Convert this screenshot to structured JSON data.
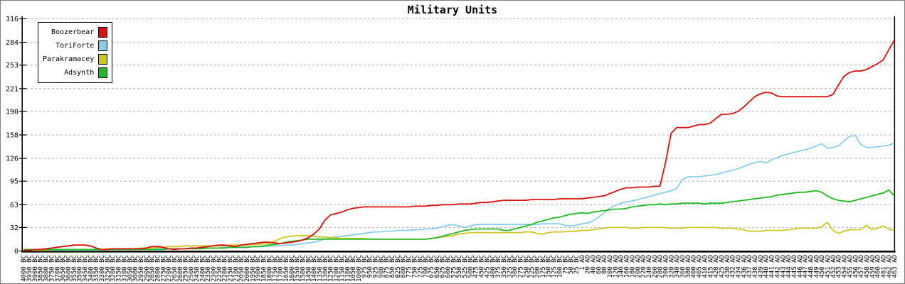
{
  "title": "Military Units",
  "chart_data": {
    "type": "line",
    "title": "Military Units",
    "grid": "horizontal-dashed",
    "background": "#ffffff",
    "grid_color": "#b3b3b3",
    "axis_color": "#000000",
    "legend_position": "top-left",
    "y_axis": {
      "min": 0,
      "max": 316,
      "ticks": [
        0,
        32,
        63,
        95,
        126,
        158,
        190,
        221,
        253,
        284,
        316
      ]
    },
    "x_axis": {
      "labels": [
        "4000 BC",
        "3950 BC",
        "3900 BC",
        "3850 BC",
        "3800 BC",
        "3750 BC",
        "3700 BC",
        "3650 BC",
        "3600 BC",
        "3550 BC",
        "3500 BC",
        "3450 BC",
        "3400 BC",
        "3350 BC",
        "3300 BC",
        "3250 BC",
        "3200 BC",
        "3150 BC",
        "3100 BC",
        "3050 BC",
        "3000 BC",
        "2950 BC",
        "2900 BC",
        "2850 BC",
        "2800 BC",
        "2750 BC",
        "2700 BC",
        "2650 BC",
        "2600 BC",
        "2550 BC",
        "2500 BC",
        "2450 BC",
        "2400 BC",
        "2350 BC",
        "2300 BC",
        "2250 BC",
        "2200 BC",
        "2150 BC",
        "2100 BC",
        "2050 BC",
        "2000 BC",
        "1950 BC",
        "1900 BC",
        "1850 BC",
        "1800 BC",
        "1750 BC",
        "1700 BC",
        "1650 BC",
        "1600 BC",
        "1550 BC",
        "1500 BC",
        "1450 BC",
        "1400 BC",
        "1350 BC",
        "1300 BC",
        "1250 BC",
        "1200 BC",
        "1150 BC",
        "1100 BC",
        "1050 BC",
        "1000 BC",
        "975 BC",
        "950 BC",
        "925 BC",
        "900 BC",
        "875 BC",
        "850 BC",
        "825 BC",
        "800 BC",
        "775 BC",
        "750 BC",
        "725 BC",
        "700 BC",
        "675 BC",
        "650 BC",
        "625 BC",
        "600 BC",
        "575 BC",
        "550 BC",
        "525 BC",
        "500 BC",
        "475 BC",
        "450 BC",
        "425 BC",
        "400 BC",
        "375 BC",
        "350 BC",
        "325 BC",
        "300 BC",
        "275 BC",
        "250 BC",
        "225 BC",
        "200 BC",
        "175 BC",
        "150 BC",
        "125 BC",
        "100 BC",
        "75 BC",
        "50 BC",
        "25 BC",
        "1 AD",
        "20 AD",
        "40 AD",
        "60 AD",
        "80 AD",
        "100 AD",
        "120 AD",
        "140 AD",
        "160 AD",
        "180 AD",
        "200 AD",
        "220 AD",
        "240 AD",
        "260 AD",
        "280 AD",
        "300 AD",
        "320 AD",
        "340 AD",
        "360 AD",
        "380 AD",
        "400 AD",
        "405 AD",
        "410 AD",
        "415 AD",
        "420 AD",
        "425 AD",
        "430 AD",
        "432 AD",
        "434 AD",
        "436 AD",
        "437 AD",
        "438 AD",
        "439 AD",
        "440 AD",
        "441 AD",
        "442 AD",
        "443 AD",
        "444 AD",
        "445 AD",
        "446 AD",
        "447 AD",
        "448 AD",
        "449 AD",
        "450 AD",
        "451 AD",
        "452 AD",
        "453 AD",
        "454 AD",
        "455 AD",
        "456 AD",
        "457 AD",
        "458 AD",
        "459 AD",
        "460 AD",
        "461 AD",
        "462 AD",
        "463 AD"
      ]
    },
    "series": [
      {
        "name": "Boozerbear",
        "color": "#dd0e0e",
        "values": [
          1,
          1,
          2,
          2,
          3,
          4,
          5,
          6,
          7,
          8,
          8,
          8,
          7,
          4,
          2,
          2,
          3,
          3,
          3,
          3,
          3,
          3,
          4,
          6,
          6,
          5,
          3,
          2,
          3,
          3,
          4,
          4,
          5,
          6,
          7,
          8,
          8,
          7,
          6,
          8,
          9,
          10,
          11,
          12,
          12,
          11,
          10,
          11,
          12,
          13,
          15,
          18,
          23,
          30,
          42,
          49,
          51,
          53,
          56,
          58,
          59,
          60,
          60,
          60,
          60,
          60,
          60,
          60,
          60,
          60,
          61,
          61,
          61,
          62,
          62,
          63,
          63,
          63,
          64,
          64,
          64,
          65,
          66,
          66,
          67,
          68,
          69,
          69,
          69,
          69,
          69,
          70,
          70,
          70,
          70,
          70,
          71,
          71,
          71,
          71,
          71,
          72,
          73,
          74,
          75,
          78,
          81,
          84,
          86,
          86,
          87,
          87,
          87,
          88,
          88,
          120,
          160,
          168,
          168,
          168,
          170,
          172,
          172,
          174,
          180,
          186,
          186,
          187,
          190,
          196,
          203,
          210,
          214,
          216,
          215,
          211,
          210,
          210,
          210,
          210,
          210,
          210,
          210,
          210,
          210,
          213,
          226,
          238,
          243,
          245,
          245,
          247,
          251,
          255,
          260,
          274,
          287
        ]
      },
      {
        "name": "ToriForte",
        "color": "#87ceeb",
        "values": [
          1,
          1,
          1,
          1,
          1,
          1,
          1,
          1,
          1,
          1,
          1,
          1,
          1,
          1,
          1,
          2,
          2,
          2,
          2,
          2,
          2,
          2,
          2,
          2,
          3,
          3,
          3,
          3,
          3,
          3,
          4,
          4,
          4,
          4,
          4,
          4,
          5,
          5,
          5,
          5,
          5,
          6,
          6,
          6,
          7,
          7,
          7,
          8,
          8,
          9,
          10,
          11,
          12,
          14,
          16,
          18,
          19,
          20,
          21,
          22,
          23,
          24,
          25,
          26,
          26,
          27,
          27,
          28,
          28,
          28,
          29,
          29,
          30,
          30,
          31,
          33,
          35,
          36,
          34,
          32,
          34,
          36,
          36,
          36,
          36,
          36,
          36,
          36,
          36,
          36,
          36,
          36,
          36,
          37,
          37,
          37,
          37,
          35,
          34,
          35,
          37,
          38,
          41,
          46,
          52,
          58,
          62,
          65,
          67,
          68,
          70,
          72,
          74,
          76,
          78,
          80,
          82,
          85,
          97,
          101,
          101,
          101,
          102,
          103,
          104,
          106,
          108,
          110,
          112,
          115,
          118,
          120,
          122,
          120,
          124,
          127,
          130,
          132,
          134,
          136,
          138,
          140,
          143,
          146,
          140,
          141,
          143,
          150,
          156,
          157,
          145,
          141,
          141,
          142,
          143,
          144,
          147
        ]
      },
      {
        "name": "Parakramacey",
        "color": "#d0c622",
        "values": [
          1,
          1,
          1,
          1,
          1,
          2,
          2,
          2,
          2,
          2,
          2,
          2,
          2,
          2,
          2,
          3,
          3,
          3,
          3,
          3,
          3,
          4,
          4,
          4,
          5,
          5,
          6,
          6,
          6,
          7,
          7,
          7,
          7,
          7,
          7,
          7,
          7,
          8,
          8,
          8,
          8,
          9,
          9,
          10,
          10,
          13,
          17,
          19,
          20,
          21,
          21,
          21,
          20,
          19,
          19,
          18,
          18,
          17,
          17,
          17,
          17,
          17,
          16,
          16,
          16,
          16,
          16,
          16,
          16,
          16,
          16,
          16,
          16,
          17,
          18,
          19,
          20,
          21,
          23,
          24,
          25,
          25,
          25,
          25,
          25,
          25,
          25,
          25,
          25,
          25,
          26,
          26,
          24,
          23,
          25,
          26,
          26,
          26,
          27,
          27,
          28,
          28,
          29,
          30,
          31,
          32,
          32,
          32,
          32,
          31,
          31,
          32,
          32,
          32,
          32,
          32,
          31,
          31,
          31,
          32,
          32,
          32,
          32,
          32,
          32,
          31,
          31,
          31,
          30,
          29,
          27,
          27,
          27,
          28,
          28,
          28,
          28,
          29,
          30,
          31,
          31,
          31,
          31,
          33,
          39,
          28,
          24,
          27,
          29,
          29,
          29,
          35,
          29,
          31,
          34,
          30,
          28
        ]
      },
      {
        "name": "Adsynth",
        "color": "#1eba1e",
        "values": [
          2,
          2,
          2,
          2,
          2,
          2,
          2,
          2,
          2,
          2,
          2,
          2,
          2,
          2,
          2,
          2,
          2,
          2,
          2,
          2,
          2,
          2,
          2,
          2,
          2,
          2,
          3,
          3,
          3,
          3,
          3,
          3,
          3,
          4,
          4,
          4,
          4,
          5,
          5,
          5,
          5,
          6,
          6,
          7,
          8,
          9,
          10,
          12,
          13,
          14,
          15,
          16,
          16,
          16,
          16,
          16,
          16,
          16,
          16,
          16,
          16,
          16,
          16,
          16,
          16,
          16,
          16,
          16,
          16,
          16,
          16,
          16,
          16,
          17,
          18,
          20,
          22,
          24,
          26,
          28,
          29,
          30,
          30,
          30,
          30,
          30,
          28,
          28,
          30,
          32,
          34,
          36,
          39,
          41,
          43,
          45,
          46,
          48,
          50,
          51,
          52,
          51,
          53,
          54,
          55,
          56,
          57,
          57,
          58,
          60,
          61,
          62,
          63,
          63,
          64,
          63,
          64,
          64,
          65,
          65,
          65,
          65,
          64,
          65,
          65,
          65,
          66,
          67,
          68,
          69,
          70,
          71,
          72,
          73,
          74,
          76,
          77,
          78,
          79,
          80,
          80,
          81,
          82,
          80,
          75,
          71,
          69,
          68,
          67,
          69,
          71,
          73,
          75,
          77,
          79,
          83,
          75
        ]
      }
    ]
  }
}
